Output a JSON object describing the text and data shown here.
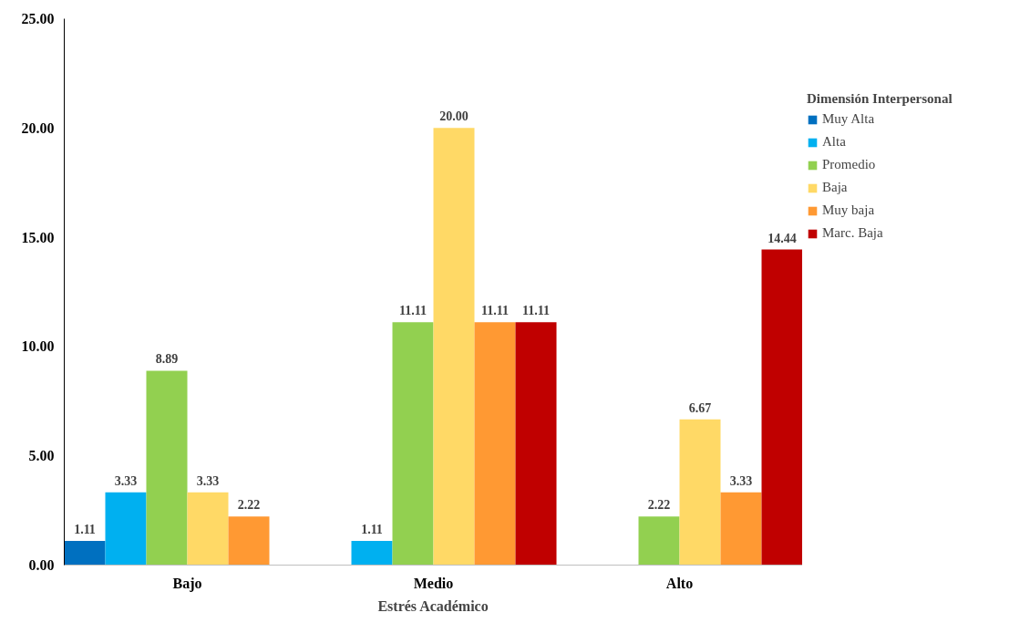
{
  "chart_data": {
    "type": "bar",
    "xlabel": "Estrés Académico",
    "legend_title": "Dimensión Interpersonal",
    "legend": "right",
    "grid": false,
    "categories": [
      "Bajo",
      "Medio",
      "Alto"
    ],
    "ylim": [
      0,
      25
    ],
    "yticks": [
      {
        "value": 0,
        "label": "0.00"
      },
      {
        "value": 5,
        "label": "5.00"
      },
      {
        "value": 10,
        "label": "10.00"
      },
      {
        "value": 15,
        "label": "15.00"
      },
      {
        "value": 20,
        "label": "20.00"
      },
      {
        "value": 25,
        "label": "25.00"
      }
    ],
    "series": [
      {
        "name": "Muy Alta",
        "color": "#0070c0",
        "values": [
          1.11,
          null,
          null
        ],
        "value_labels": [
          "1.11",
          null,
          null
        ]
      },
      {
        "name": "Alta",
        "color": "#00b0f0",
        "values": [
          3.33,
          1.11,
          null
        ],
        "value_labels": [
          "3.33",
          "1.11",
          null
        ]
      },
      {
        "name": "Promedio",
        "color": "#92d050",
        "values": [
          8.89,
          11.11,
          2.22
        ],
        "value_labels": [
          "8.89",
          "11.11",
          "2.22"
        ]
      },
      {
        "name": "Baja",
        "color": "#ffd966",
        "values": [
          3.33,
          20.0,
          6.67
        ],
        "value_labels": [
          "3.33",
          "20.00",
          "6.67"
        ]
      },
      {
        "name": "Muy baja",
        "color": "#ff9933",
        "values": [
          2.22,
          11.11,
          3.33
        ],
        "value_labels": [
          "2.22",
          "11.11",
          "3.33"
        ]
      },
      {
        "name": "Marc. Baja",
        "color": "#c00000",
        "values": [
          null,
          11.11,
          14.44
        ],
        "value_labels": [
          null,
          "11.11",
          "14.44"
        ]
      }
    ]
  }
}
